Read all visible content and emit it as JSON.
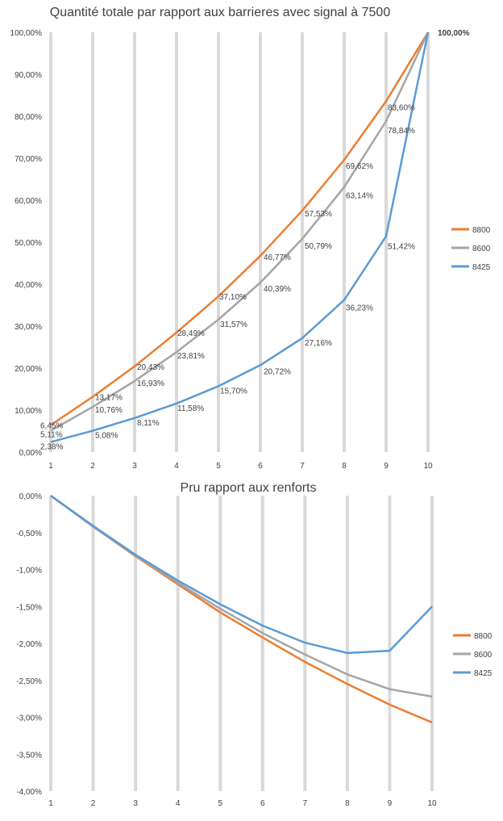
{
  "chart_data": [
    {
      "type": "line",
      "title": "Quantité totale par rapport aux barrieres avec signal à 7500",
      "xlabel": "",
      "ylabel": "",
      "categories": [
        "1",
        "2",
        "3",
        "4",
        "5",
        "6",
        "7",
        "8",
        "9",
        "10"
      ],
      "ylim": [
        0,
        100
      ],
      "y_ticks": [
        "0,00%",
        "10,00%",
        "20,00%",
        "30,00%",
        "40,00%",
        "50,00%",
        "60,00%",
        "70,00%",
        "80,00%",
        "90,00%",
        "100,00%"
      ],
      "grid": "vertical",
      "legend_position": "right",
      "series": [
        {
          "name": "8800",
          "color": "#ED7D31",
          "values": [
            6.45,
            13.17,
            20.43,
            28.49,
            37.1,
            46.77,
            57.53,
            69.62,
            83.6,
            100.0
          ],
          "labels": [
            "6,45%",
            "13,17%",
            "20,43%",
            "28,49%",
            "37,10%",
            "46,77%",
            "57,53%",
            "69,62%",
            "83,60%",
            "100,00%"
          ]
        },
        {
          "name": "8600",
          "color": "#A5A5A5",
          "values": [
            5.11,
            10.76,
            16.93,
            23.81,
            31.57,
            40.39,
            50.79,
            63.14,
            78.84,
            100.0
          ],
          "labels": [
            "5,11%",
            "10,76%",
            "16,93%",
            "23,81%",
            "31,57%",
            "40,39%",
            "50,79%",
            "63,14%",
            "78,84%",
            ""
          ]
        },
        {
          "name": "8425",
          "color": "#5B9BD5",
          "values": [
            2.38,
            5.08,
            8.11,
            11.58,
            15.7,
            20.72,
            27.16,
            36.23,
            51.42,
            100.0
          ],
          "labels": [
            "2,38%",
            "5,08%",
            "8,11%",
            "11,58%",
            "15,70%",
            "20,72%",
            "27,16%",
            "36,23%",
            "51,42%",
            ""
          ]
        }
      ]
    },
    {
      "type": "line",
      "title": "Pru rapport aux renforts",
      "xlabel": "",
      "ylabel": "",
      "categories": [
        "1",
        "2",
        "3",
        "4",
        "5",
        "6",
        "7",
        "8",
        "9",
        "10"
      ],
      "ylim": [
        -4,
        0
      ],
      "y_ticks": [
        "0,00%",
        "-0,50%",
        "-1,00%",
        "-1,50%",
        "-2,00%",
        "-2,50%",
        "-3,00%",
        "-3,50%",
        "-4,00%"
      ],
      "grid": "vertical",
      "legend_position": "right",
      "series": [
        {
          "name": "8800",
          "color": "#ED7D31",
          "values": [
            0.0,
            -0.42,
            -0.82,
            -1.2,
            -1.58,
            -1.92,
            -2.25,
            -2.55,
            -2.83,
            -3.07
          ]
        },
        {
          "name": "8600",
          "color": "#A5A5A5",
          "values": [
            0.0,
            -0.42,
            -0.81,
            -1.18,
            -1.53,
            -1.86,
            -2.15,
            -2.42,
            -2.62,
            -2.72
          ]
        },
        {
          "name": "8425",
          "color": "#5B9BD5",
          "values": [
            0.0,
            -0.41,
            -0.8,
            -1.15,
            -1.47,
            -1.76,
            -1.99,
            -2.13,
            -2.1,
            -1.5
          ]
        }
      ]
    }
  ]
}
